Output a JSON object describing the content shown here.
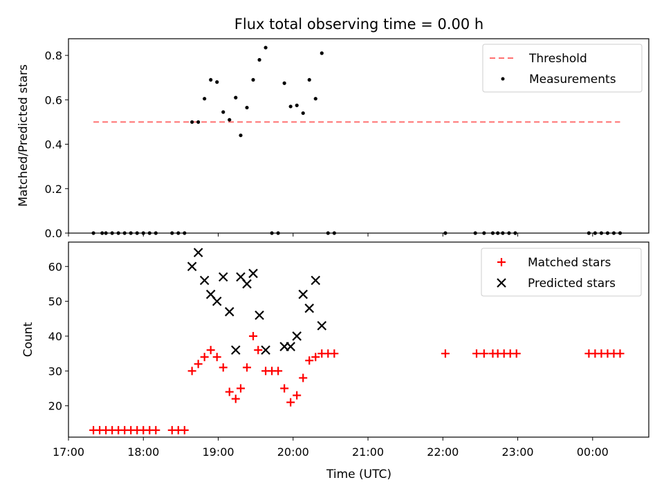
{
  "chart_data": [
    {
      "type": "scatter",
      "title": "Flux total observing time = 0.00 h",
      "ylabel": "Matched/Predicted stars",
      "xlabel": "",
      "xlim": [
        "17:00",
        "00:45"
      ],
      "ylim": [
        0,
        0.875
      ],
      "yticks": [
        0.0,
        0.2,
        0.4,
        0.6,
        0.8
      ],
      "ytick_labels": [
        "0.0",
        "0.2",
        "0.4",
        "0.6",
        "0.8"
      ],
      "legend_position": "top-right",
      "threshold": {
        "name": "Threshold",
        "value": 0.5,
        "x_range": [
          "17:20",
          "00:22"
        ],
        "color": "#ff7070",
        "style": "dashed"
      },
      "series": [
        {
          "name": "Measurements",
          "color": "#000000",
          "marker": "dot",
          "points": [
            [
              "17:20",
              0.0
            ],
            [
              "17:27",
              0.0
            ],
            [
              "17:30",
              0.0
            ],
            [
              "17:35",
              0.0
            ],
            [
              "17:40",
              0.0
            ],
            [
              "17:45",
              0.0
            ],
            [
              "17:50",
              0.0
            ],
            [
              "17:55",
              0.0
            ],
            [
              "18:00",
              0.0
            ],
            [
              "18:05",
              0.0
            ],
            [
              "18:10",
              0.0
            ],
            [
              "18:23",
              0.0
            ],
            [
              "18:28",
              0.0
            ],
            [
              "18:33",
              0.0
            ],
            [
              "18:39",
              0.5
            ],
            [
              "18:44",
              0.5
            ],
            [
              "18:49",
              0.605
            ],
            [
              "18:54",
              0.69
            ],
            [
              "18:59",
              0.68
            ],
            [
              "19:04",
              0.545
            ],
            [
              "19:09",
              0.51
            ],
            [
              "19:14",
              0.61
            ],
            [
              "19:18",
              0.44
            ],
            [
              "19:23",
              0.565
            ],
            [
              "19:28",
              0.69
            ],
            [
              "19:33",
              0.78
            ],
            [
              "19:38",
              0.835
            ],
            [
              "19:43",
              0.0
            ],
            [
              "19:48",
              0.0
            ],
            [
              "19:53",
              0.675
            ],
            [
              "19:58",
              0.57
            ],
            [
              "20:03",
              0.575
            ],
            [
              "20:08",
              0.54
            ],
            [
              "20:13",
              0.69
            ],
            [
              "20:18",
              0.605
            ],
            [
              "20:23",
              0.81
            ],
            [
              "20:28",
              0.0
            ],
            [
              "20:33",
              0.0
            ],
            [
              "22:02",
              0.0
            ],
            [
              "22:26",
              0.0
            ],
            [
              "22:33",
              0.0
            ],
            [
              "22:40",
              0.0
            ],
            [
              "22:44",
              0.0
            ],
            [
              "22:48",
              0.0
            ],
            [
              "22:53",
              0.0
            ],
            [
              "22:58",
              0.0
            ],
            [
              "23:57",
              0.0
            ],
            [
              "00:02",
              0.0
            ],
            [
              "00:07",
              0.0
            ],
            [
              "00:12",
              0.0
            ],
            [
              "00:17",
              0.0
            ],
            [
              "00:22",
              0.0
            ]
          ]
        }
      ]
    },
    {
      "type": "scatter",
      "title": "",
      "ylabel": "Count",
      "xlabel": "Time (UTC)",
      "xlim": [
        "17:00",
        "00:45"
      ],
      "ylim": [
        11,
        67
      ],
      "yticks": [
        20,
        30,
        40,
        50,
        60
      ],
      "ytick_labels": [
        "20",
        "30",
        "40",
        "50",
        "60"
      ],
      "xticks": [
        "17:00",
        "18:00",
        "19:00",
        "20:00",
        "21:00",
        "22:00",
        "23:00",
        "00:00"
      ],
      "xtick_labels": [
        "17:00",
        "18:00",
        "19:00",
        "20:00",
        "21:00",
        "22:00",
        "23:00",
        "00:00"
      ],
      "legend_position": "top-right",
      "series": [
        {
          "name": "Matched stars",
          "color": "#ff0000",
          "marker": "plus",
          "points": [
            [
              "17:20",
              13
            ],
            [
              "17:25",
              13
            ],
            [
              "17:30",
              13
            ],
            [
              "17:35",
              13
            ],
            [
              "17:40",
              13
            ],
            [
              "17:45",
              13
            ],
            [
              "17:50",
              13
            ],
            [
              "17:55",
              13
            ],
            [
              "18:00",
              13
            ],
            [
              "18:05",
              13
            ],
            [
              "18:10",
              13
            ],
            [
              "18:23",
              13
            ],
            [
              "18:28",
              13
            ],
            [
              "18:33",
              13
            ],
            [
              "18:39",
              30
            ],
            [
              "18:44",
              32
            ],
            [
              "18:49",
              34
            ],
            [
              "18:54",
              36
            ],
            [
              "18:59",
              34
            ],
            [
              "19:04",
              31
            ],
            [
              "19:09",
              24
            ],
            [
              "19:14",
              22
            ],
            [
              "19:18",
              25
            ],
            [
              "19:23",
              31
            ],
            [
              "19:28",
              40
            ],
            [
              "19:32",
              36
            ],
            [
              "19:38",
              30
            ],
            [
              "19:43",
              30
            ],
            [
              "19:48",
              30
            ],
            [
              "19:53",
              25
            ],
            [
              "19:58",
              21
            ],
            [
              "20:03",
              23
            ],
            [
              "20:08",
              28
            ],
            [
              "20:13",
              33
            ],
            [
              "20:18",
              34
            ],
            [
              "20:23",
              35
            ],
            [
              "20:28",
              35
            ],
            [
              "20:33",
              35
            ],
            [
              "22:02",
              35
            ],
            [
              "22:27",
              35
            ],
            [
              "22:33",
              35
            ],
            [
              "22:40",
              35
            ],
            [
              "22:44",
              35
            ],
            [
              "22:49",
              35
            ],
            [
              "22:54",
              35
            ],
            [
              "22:59",
              35
            ],
            [
              "23:57",
              35
            ],
            [
              "00:02",
              35
            ],
            [
              "00:07",
              35
            ],
            [
              "00:12",
              35
            ],
            [
              "00:17",
              35
            ],
            [
              "00:22",
              35
            ]
          ]
        },
        {
          "name": "Predicted stars",
          "color": "#000000",
          "marker": "x",
          "points": [
            [
              "18:39",
              60
            ],
            [
              "18:44",
              64
            ],
            [
              "18:49",
              56
            ],
            [
              "18:54",
              52
            ],
            [
              "18:59",
              50
            ],
            [
              "19:04",
              57
            ],
            [
              "19:09",
              47
            ],
            [
              "19:14",
              36
            ],
            [
              "19:18",
              57
            ],
            [
              "19:23",
              55
            ],
            [
              "19:28",
              58
            ],
            [
              "19:33",
              46
            ],
            [
              "19:38",
              36
            ],
            [
              "19:53",
              37
            ],
            [
              "19:58",
              37
            ],
            [
              "20:03",
              40
            ],
            [
              "20:08",
              52
            ],
            [
              "20:13",
              48
            ],
            [
              "20:18",
              56
            ],
            [
              "20:23",
              43
            ]
          ]
        }
      ]
    }
  ]
}
